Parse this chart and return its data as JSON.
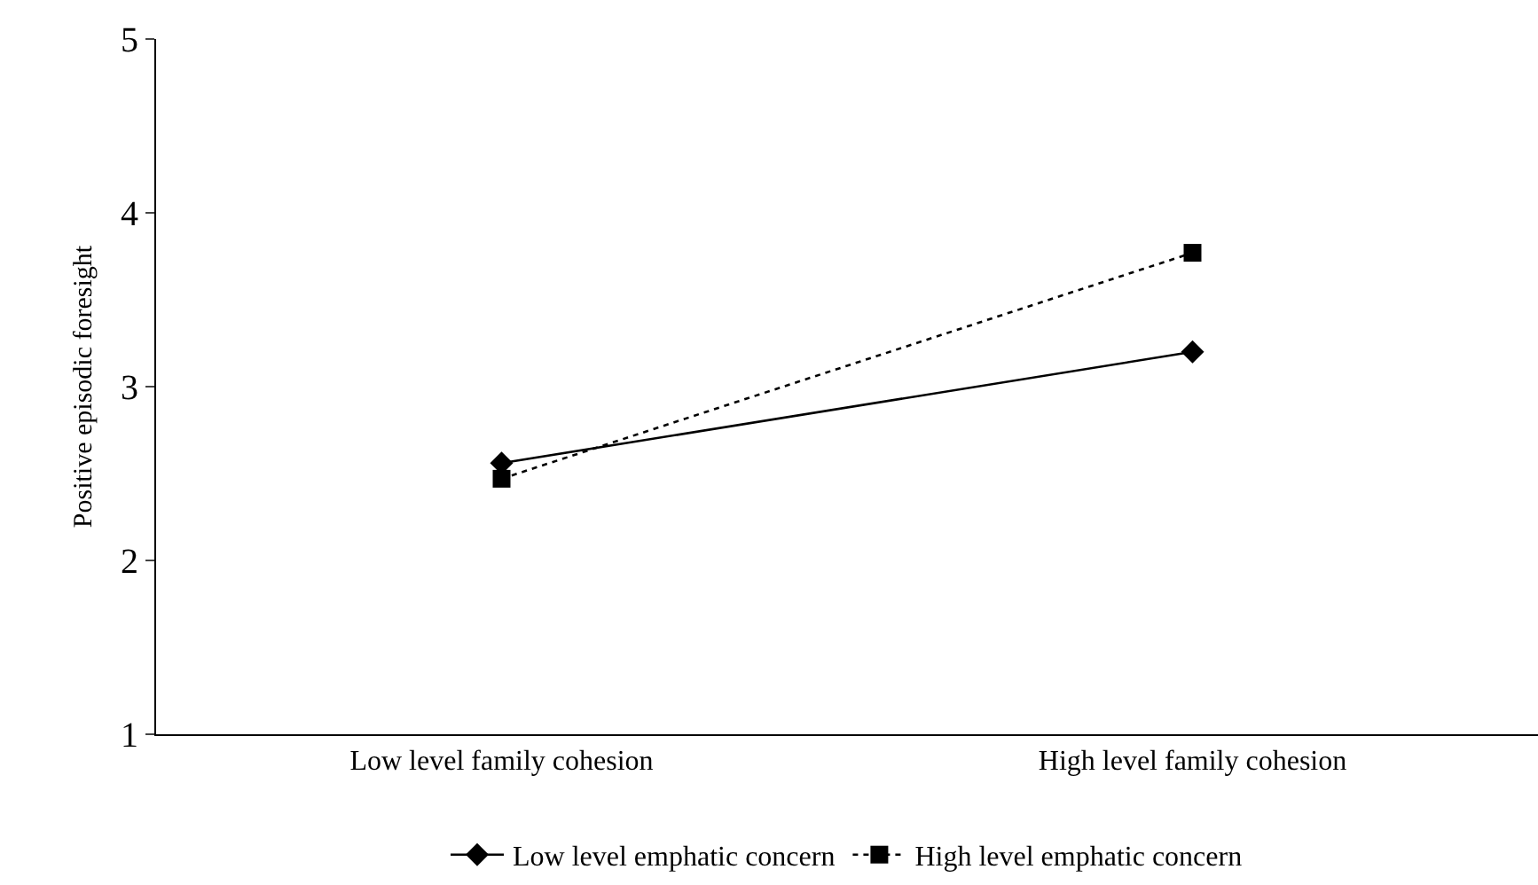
{
  "chart_data": {
    "type": "line",
    "ylabel": "Positive episodic foresight",
    "categories": [
      "Low level family cohesion",
      "High level family cohesion"
    ],
    "series": [
      {
        "name": "Low level emphatic concern",
        "color": "#000000",
        "values": [
          2.56,
          3.2
        ],
        "marker": "diamond",
        "line_style": "solid"
      },
      {
        "name": "High level emphatic concern",
        "color": "#000000",
        "values": [
          2.47,
          3.77
        ],
        "marker": "square",
        "line_style": "dotted"
      }
    ],
    "ylim": [
      1,
      5
    ],
    "yticks": [
      1,
      2,
      3,
      4,
      5
    ],
    "grid": false,
    "legend": "bottom"
  }
}
